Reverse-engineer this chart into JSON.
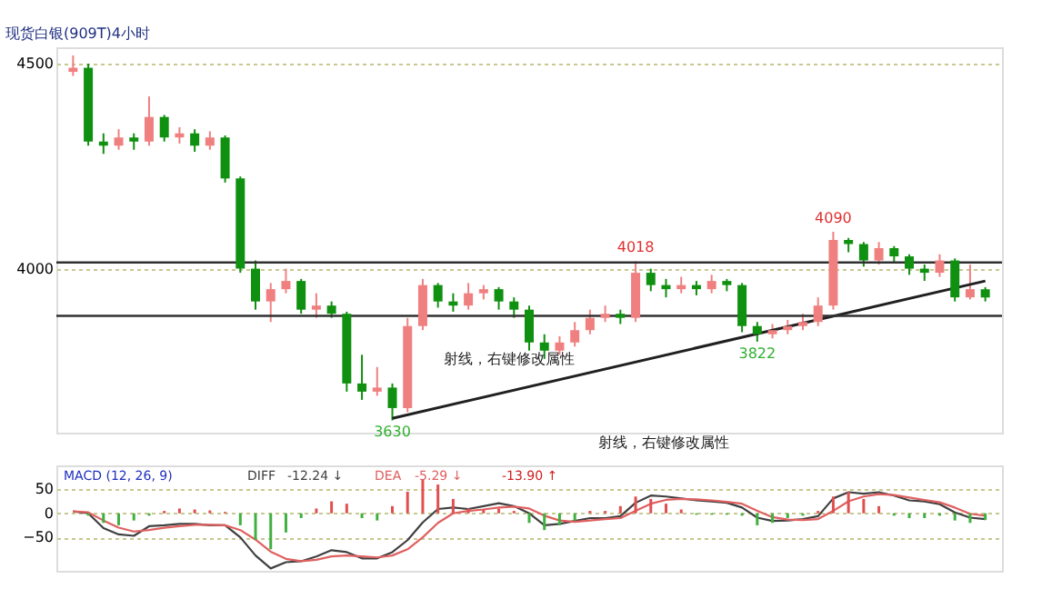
{
  "chart_data": [
    {
      "type": "candlestick",
      "title": "现货白银(909T)4小时",
      "categories": [
        null,
        null,
        null,
        null,
        null,
        null,
        null,
        null,
        null,
        null,
        null,
        null,
        null,
        null,
        null,
        null,
        null,
        null,
        null,
        null,
        null,
        null,
        null,
        null,
        null,
        null,
        null,
        null,
        null,
        null,
        null,
        null,
        null,
        null,
        null,
        null,
        null,
        null,
        null,
        null,
        null,
        null,
        null,
        null,
        null,
        null,
        null,
        null,
        null,
        null,
        null,
        null,
        null,
        null,
        null,
        null,
        null,
        null,
        null,
        null,
        null
      ],
      "ohlc": [
        [
          4480,
          4520,
          4470,
          4490
        ],
        [
          4490,
          4500,
          4300,
          4310
        ],
        [
          4310,
          4330,
          4280,
          4300
        ],
        [
          4300,
          4340,
          4290,
          4320
        ],
        [
          4320,
          4330,
          4290,
          4310
        ],
        [
          4310,
          4420,
          4300,
          4370
        ],
        [
          4370,
          4375,
          4310,
          4320
        ],
        [
          4320,
          4345,
          4305,
          4330
        ],
        [
          4330,
          4340,
          4285,
          4300
        ],
        [
          4300,
          4335,
          4290,
          4320
        ],
        [
          4320,
          4325,
          4210,
          4220
        ],
        [
          4220,
          4225,
          3990,
          4000
        ],
        [
          4000,
          4020,
          3900,
          3920
        ],
        [
          3920,
          3965,
          3870,
          3950
        ],
        [
          3950,
          4000,
          3940,
          3970
        ],
        [
          3970,
          3975,
          3890,
          3900
        ],
        [
          3900,
          3940,
          3880,
          3910
        ],
        [
          3910,
          3920,
          3880,
          3890
        ],
        [
          3890,
          3895,
          3700,
          3720
        ],
        [
          3720,
          3790,
          3680,
          3700
        ],
        [
          3700,
          3760,
          3690,
          3710
        ],
        [
          3710,
          3720,
          3630,
          3660
        ],
        [
          3660,
          3880,
          3650,
          3860
        ],
        [
          3860,
          3975,
          3850,
          3960
        ],
        [
          3960,
          3965,
          3905,
          3920
        ],
        [
          3920,
          3940,
          3895,
          3910
        ],
        [
          3910,
          3965,
          3900,
          3940
        ],
        [
          3940,
          3960,
          3925,
          3950
        ],
        [
          3950,
          3955,
          3900,
          3920
        ],
        [
          3920,
          3930,
          3880,
          3900
        ],
        [
          3900,
          3910,
          3800,
          3820
        ],
        [
          3820,
          3840,
          3780,
          3800
        ],
        [
          3800,
          3835,
          3790,
          3820
        ],
        [
          3820,
          3870,
          3810,
          3850
        ],
        [
          3850,
          3900,
          3840,
          3880
        ],
        [
          3880,
          3910,
          3870,
          3890
        ],
        [
          3890,
          3900,
          3865,
          3880
        ],
        [
          3880,
          4018,
          3870,
          3990
        ],
        [
          3990,
          4000,
          3945,
          3960
        ],
        [
          3960,
          3975,
          3930,
          3950
        ],
        [
          3950,
          3980,
          3940,
          3960
        ],
        [
          3960,
          3970,
          3935,
          3950
        ],
        [
          3950,
          3985,
          3940,
          3970
        ],
        [
          3970,
          3975,
          3945,
          3960
        ],
        [
          3960,
          3965,
          3845,
          3860
        ],
        [
          3860,
          3870,
          3822,
          3840
        ],
        [
          3840,
          3865,
          3830,
          3850
        ],
        [
          3850,
          3875,
          3840,
          3860
        ],
        [
          3860,
          3890,
          3850,
          3870
        ],
        [
          3870,
          3930,
          3860,
          3910
        ],
        [
          3910,
          4090,
          3900,
          4070
        ],
        [
          4070,
          4075,
          4040,
          4060
        ],
        [
          4060,
          4065,
          4005,
          4020
        ],
        [
          4020,
          4065,
          4010,
          4050
        ],
        [
          4050,
          4055,
          4015,
          4030
        ],
        [
          4030,
          4035,
          3985,
          4000
        ],
        [
          4000,
          4010,
          3970,
          3990
        ],
        [
          3990,
          4035,
          3980,
          4020
        ],
        [
          4020,
          4025,
          3920,
          3930
        ],
        [
          3930,
          4010,
          3925,
          3950
        ],
        [
          3950,
          3955,
          3920,
          3930
        ]
      ],
      "colors": [
        "#f08080",
        "#109010",
        "#109010",
        "#f08080",
        "#109010",
        "#f08080",
        "#109010",
        "#f08080",
        "#109010",
        "#f08080",
        "#109010",
        "#109010",
        "#109010",
        "#f08080",
        "#f08080",
        "#109010",
        "#f08080",
        "#109010",
        "#109010",
        "#109010",
        "#f08080",
        "#109010",
        "#f08080",
        "#f08080",
        "#109010",
        "#109010",
        "#f08080",
        "#f08080",
        "#109010",
        "#109010",
        "#109010",
        "#109010",
        "#f08080",
        "#f08080",
        "#f08080",
        "#f08080",
        "#109010",
        "#f08080",
        "#109010",
        "#109010",
        "#f08080",
        "#109010",
        "#f08080",
        "#109010",
        "#109010",
        "#109010",
        "#f08080",
        "#f08080",
        "#f08080",
        "#f08080",
        "#f08080",
        "#109010",
        "#109010",
        "#f08080",
        "#109010",
        "#109010",
        "#109010",
        "#f08080",
        "#109010",
        "#f08080",
        "#109010"
      ],
      "series": [
        {
          "type": "line",
          "color": "#202020",
          "values": [
            null,
            null,
            null,
            null,
            null,
            null,
            null,
            null,
            null,
            null,
            null,
            null,
            null,
            null,
            null,
            null,
            null,
            null,
            null,
            null,
            null,
            3635,
            null,
            null,
            null,
            null,
            null,
            null,
            null,
            null,
            null,
            null,
            null,
            null,
            null,
            null,
            null,
            null,
            null,
            null,
            null,
            null,
            null,
            null,
            null,
            null,
            null,
            null,
            null,
            null,
            null,
            null,
            null,
            null,
            null,
            null,
            null,
            null,
            null,
            null,
            3970
          ]
        }
      ],
      "ref_lines": [
        {
          "axis": "y",
          "value": 4015,
          "color": "#303030"
        },
        {
          "axis": "y",
          "value": 3885,
          "color": "#303030"
        }
      ],
      "annotations": [
        {
          "text": "4018",
          "y": 4018
        },
        {
          "text": "4090",
          "y": 4090
        },
        {
          "text": "3822",
          "y": 3822
        },
        {
          "text": "3630",
          "y": 3630
        },
        "射线，右键修改属性",
        "射线，右键修改属性"
      ],
      "ylim": [
        3600,
        4540
      ],
      "yticks": [
        4000,
        4500
      ],
      "grid": "y",
      "tick_labels": "y"
    },
    {
      "type": "line",
      "title": "MACD (12, 26, 9)",
      "categories": [
        null,
        null,
        null,
        null,
        null,
        null,
        null,
        null,
        null,
        null,
        null,
        null,
        null,
        null,
        null,
        null,
        null,
        null,
        null,
        null,
        null,
        null,
        null,
        null,
        null,
        null,
        null,
        null,
        null,
        null,
        null,
        null,
        null,
        null,
        null,
        null,
        null,
        null,
        null,
        null,
        null,
        null,
        null,
        null,
        null,
        null,
        null,
        null,
        null,
        null,
        null,
        null,
        null,
        null,
        null,
        null,
        null,
        null,
        null,
        null,
        null
      ],
      "series": [
        {
          "type": "bar",
          "values": [
            0,
            -5,
            -20,
            -25,
            -15,
            -5,
            5,
            10,
            8,
            6,
            3,
            -25,
            -55,
            -75,
            -40,
            -10,
            10,
            25,
            20,
            -10,
            -15,
            15,
            45,
            70,
            60,
            30,
            10,
            8,
            10,
            5,
            -20,
            -35,
            -25,
            -15,
            5,
            5,
            15,
            35,
            30,
            20,
            8,
            -3,
            -3,
            -3,
            -5,
            -25,
            -20,
            -10,
            -5,
            5,
            35,
            45,
            30,
            15,
            -5,
            -10,
            -10,
            -5,
            -15,
            -20,
            -14
          ],
          "colors": [
            "#e05050",
            "#40b040",
            "#40b040",
            "#40b040",
            "#40b040",
            "#40b040",
            "#e05050",
            "#e05050",
            "#e05050",
            "#e05050",
            "#e05050",
            "#40b040",
            "#40b040",
            "#40b040",
            "#40b040",
            "#40b040",
            "#e05050",
            "#e05050",
            "#e05050",
            "#40b040",
            "#40b040",
            "#e05050",
            "#e05050",
            "#e05050",
            "#e05050",
            "#e05050",
            "#e05050",
            "#e05050",
            "#e05050",
            "#e05050",
            "#40b040",
            "#40b040",
            "#40b040",
            "#40b040",
            "#e05050",
            "#e05050",
            "#e05050",
            "#e05050",
            "#e05050",
            "#e05050",
            "#e05050",
            "#40b040",
            "#40b040",
            "#40b040",
            "#40b040",
            "#40b040",
            "#40b040",
            "#40b040",
            "#40b040",
            "#e05050",
            "#e05050",
            "#e05050",
            "#e05050",
            "#e05050",
            "#40b040",
            "#40b040",
            "#40b040",
            "#40b040",
            "#40b040",
            "#40b040",
            "#40b040"
          ]
        },
        {
          "name": "DIFF",
          "color": "#404040",
          "values": [
            4,
            0,
            -31,
            -44,
            -47,
            -27,
            -25,
            -22,
            -22,
            -25,
            -25,
            -50,
            -88,
            -115,
            -102,
            -100,
            -90,
            -77,
            -81,
            -94,
            -94,
            -81,
            -56,
            -19,
            9,
            12,
            9,
            15,
            21,
            15,
            0,
            -25,
            -22,
            -16,
            -10,
            -10,
            -6,
            22,
            37,
            35,
            31,
            27,
            25,
            22,
            12,
            -9,
            -16,
            -15,
            -12,
            -6,
            31,
            44,
            41,
            44,
            37,
            27,
            25,
            19,
            2,
            -9,
            -12
          ]
        },
        {
          "name": "DEA",
          "color": "#e06060",
          "values": [
            4,
            2,
            -15,
            -30,
            -38,
            -35,
            -30,
            -27,
            -24,
            -24,
            -25,
            -35,
            -55,
            -80,
            -95,
            -100,
            -97,
            -90,
            -88,
            -90,
            -92,
            -88,
            -75,
            -50,
            -20,
            0,
            5,
            8,
            12,
            14,
            10,
            -5,
            -15,
            -18,
            -15,
            -12,
            -10,
            5,
            20,
            28,
            30,
            29,
            27,
            24,
            20,
            5,
            -8,
            -13,
            -14,
            -12,
            5,
            25,
            35,
            40,
            38,
            33,
            28,
            23,
            12,
            -1,
            -5
          ]
        }
      ],
      "annotations": [
        "-12.24 ↓",
        "-5.29 ↓",
        "-13.90 ↑"
      ],
      "legend": "top left",
      "ylim": [
        -120,
        100
      ],
      "yticks": [
        50,
        0,
        -50
      ],
      "grid": "y",
      "tick_labels": "y"
    }
  ]
}
